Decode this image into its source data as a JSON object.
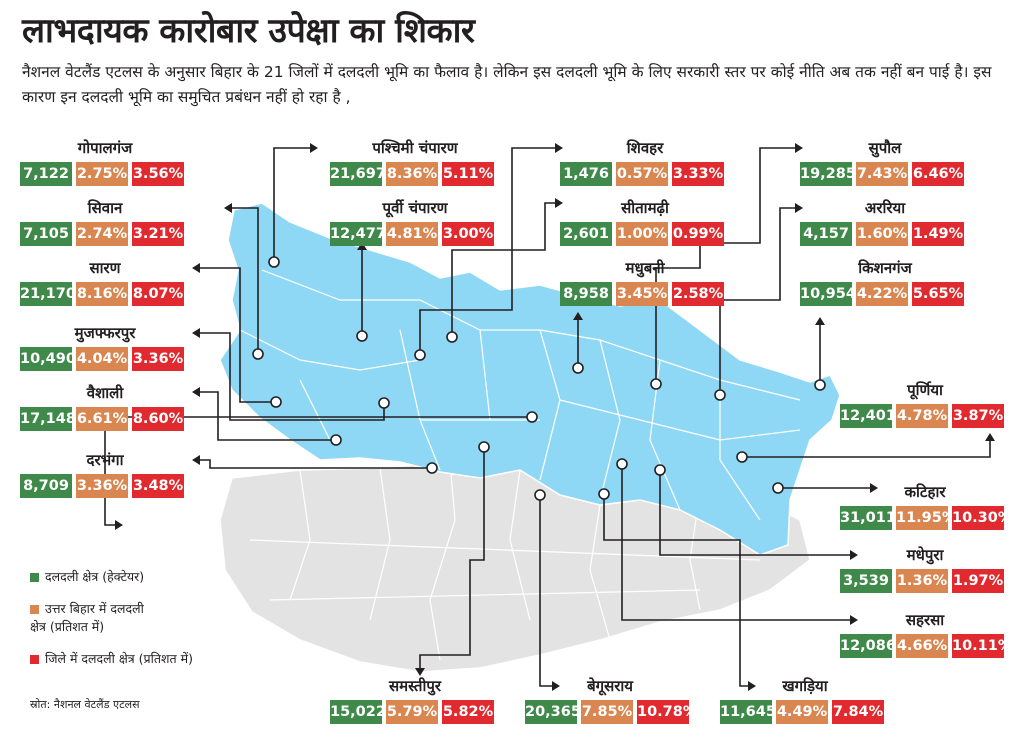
{
  "title": "लाभदायक कारोबार उपेक्षा का शिकार",
  "subtitle": "नैशनल वेटलैंड एटलस के अनुसार बिहार के 21 जिलों में दलदली भूमि का फैलाव है। लेकिन इस दलदली भूमि के लिए सरकारी स्तर पर कोई नीति अब तक नहीं बन पाई है। इस कारण इन दलदली भूमि का समुचित प्रबंधन नहीं हो रहा है ,",
  "colors": {
    "green": "#3f8a4a",
    "orange": "#d98651",
    "red": "#e12a2f",
    "map_blue": "#8fd8f5",
    "map_grey": "#e3e3e3"
  },
  "districts": [
    {
      "name": "गोपालगंज",
      "area": "7,122",
      "north_pct": "2.75%",
      "district_pct": "3.56%"
    },
    {
      "name": "सिवान",
      "area": "7,105",
      "north_pct": "2.74%",
      "district_pct": "3.21%"
    },
    {
      "name": "सारण",
      "area": "21,170",
      "north_pct": "8.16%",
      "district_pct": "8.07%"
    },
    {
      "name": "मुजफ्फरपुर",
      "area": "10,490",
      "north_pct": "4.04%",
      "district_pct": "3.36%"
    },
    {
      "name": "वैशाली",
      "area": "17,148",
      "north_pct": "6.61%",
      "district_pct": "8.60%"
    },
    {
      "name": "दरभंगा",
      "area": "8,709",
      "north_pct": "3.36%",
      "district_pct": "3.48%"
    },
    {
      "name": "पश्चिमी चंपारण",
      "area": "21,697",
      "north_pct": "8.36%",
      "district_pct": "5.11%"
    },
    {
      "name": "पूर्वी चंपारण",
      "area": "12,477",
      "north_pct": "4.81%",
      "district_pct": "3.00%"
    },
    {
      "name": "शिवहर",
      "area": "1,476",
      "north_pct": "0.57%",
      "district_pct": "3.33%"
    },
    {
      "name": "सीतामढ़ी",
      "area": "2,601",
      "north_pct": "1.00%",
      "district_pct": "0.99%"
    },
    {
      "name": "मधुबनी",
      "area": "8,958",
      "north_pct": "3.45%",
      "district_pct": "2.58%"
    },
    {
      "name": "सुपौल",
      "area": "19,285",
      "north_pct": "7.43%",
      "district_pct": "6.46%"
    },
    {
      "name": "अररिया",
      "area": "4,157",
      "north_pct": "1.60%",
      "district_pct": "1.49%"
    },
    {
      "name": "किशनगंज",
      "area": "10,954",
      "north_pct": "4.22%",
      "district_pct": "5.65%"
    },
    {
      "name": "पूर्णिया",
      "area": "12,401",
      "north_pct": "4.78%",
      "district_pct": "3.87%"
    },
    {
      "name": "कटिहार",
      "area": "31,011",
      "north_pct": "11.95%",
      "district_pct": "10.30%"
    },
    {
      "name": "मधेपुरा",
      "area": "3,539",
      "north_pct": "1.36%",
      "district_pct": "1.97%"
    },
    {
      "name": "सहरसा",
      "area": "12,086",
      "north_pct": "4.66%",
      "district_pct": "10.11%"
    },
    {
      "name": "समस्तीपुर",
      "area": "15,022",
      "north_pct": "5.79%",
      "district_pct": "5.82%"
    },
    {
      "name": "बेगूसराय",
      "area": "20,365",
      "north_pct": "7.85%",
      "district_pct": "10.78%"
    },
    {
      "name": "खगड़िया",
      "area": "11,645",
      "north_pct": "4.49%",
      "district_pct": "7.84%"
    }
  ],
  "legend": [
    {
      "label": "दलदली क्षेत्र (हेक्टेयर)",
      "color": "#3f8a4a"
    },
    {
      "label": "उत्तर बिहार में दलदली क्षेत्र (प्रतिशत में)",
      "color": "#d98651"
    },
    {
      "label": "जिले में दलदली क्षेत्र (प्रतिशत में)",
      "color": "#e12a2f"
    }
  ],
  "source": "स्रोत: नैशनल वेटलैंड एटलस"
}
